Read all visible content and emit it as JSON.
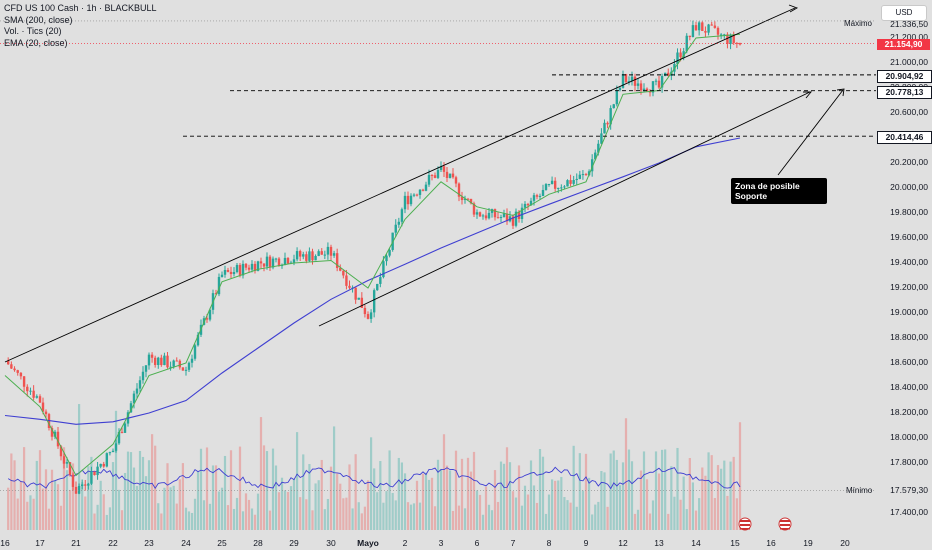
{
  "legend": {
    "symbol": "CFD US 100 Cash · 1h · BLACKBULL",
    "sma": "SMA (200, close)",
    "vol": "Vol. · Tics (20)",
    "ema": "EMA (20, close)"
  },
  "currency": "USD",
  "price_axis": {
    "ticks": [
      "21.200,00",
      "21.000,00",
      "20.800,00",
      "20.600,00",
      "20.400,00",
      "20.200,00",
      "20.000,00",
      "19.800,00",
      "19.600,00",
      "19.400,00",
      "19.200,00",
      "19.000,00",
      "18.800,00",
      "18.600,00",
      "18.400,00",
      "18.200,00",
      "18.000,00",
      "17.800,00",
      "17.400,00"
    ],
    "max_label": "Máximo",
    "max_value": "21.336,50",
    "min_label": "Mínimo",
    "min_value": "17.579,30",
    "current": "21.154,90",
    "levels": [
      "20.904,92",
      "20.778,13",
      "20.414,46"
    ]
  },
  "time_axis": [
    "16",
    "17",
    "21",
    "22",
    "23",
    "24",
    "25",
    "28",
    "29",
    "30",
    "Mayo",
    "2",
    "3",
    "6",
    "7",
    "8",
    "9",
    "12",
    "13",
    "14",
    "15",
    "16",
    "19",
    "20"
  ],
  "annotation": {
    "line1": "Zona de posible",
    "line2": "Soporte"
  },
  "chart_data": {
    "type": "candlestick",
    "title": "CFD US 100 Cash · 1h · BLACKBULL",
    "indicators": [
      "SMA (200, close)",
      "Vol. · Tics (20)",
      "EMA (20, close)"
    ],
    "x": [
      "16",
      "17",
      "21",
      "22",
      "23",
      "24",
      "25",
      "28",
      "29",
      "30",
      "Mayo",
      "2",
      "3",
      "6",
      "7",
      "8",
      "9",
      "12",
      "13",
      "14",
      "15"
    ],
    "series": [
      {
        "name": "price",
        "values": [
          18620,
          18300,
          17580,
          17900,
          18650,
          18550,
          19300,
          19400,
          19450,
          19480,
          18980,
          19900,
          20150,
          19800,
          19750,
          20000,
          20100,
          20870,
          20800,
          21300,
          21150
        ]
      },
      {
        "name": "SMA (200, close)",
        "values": [
          18180,
          18150,
          18110,
          18130,
          18200,
          18300,
          18520,
          18720,
          18920,
          19110,
          19260,
          19390,
          19520,
          19640,
          19760,
          19870,
          19980,
          20090,
          20200,
          20330,
          20400
        ]
      },
      {
        "name": "EMA (20, close)",
        "values": [
          18500,
          18250,
          17700,
          17950,
          18500,
          18600,
          19250,
          19350,
          19400,
          19420,
          19200,
          19750,
          20050,
          19850,
          19780,
          19950,
          20050,
          20750,
          20780,
          21200,
          21230
        ]
      }
    ],
    "horizontal_levels": [
      20904.92,
      20778.13,
      20414.46
    ],
    "current_price": 21154.9,
    "high": 21336.5,
    "low": 17579.3,
    "ylim": [
      17300,
      21500
    ],
    "colors": {
      "up": "#26a69a",
      "down": "#ef5350",
      "sma": "#3f3fd1",
      "ema": "#4caf50",
      "current": "#f23645"
    }
  }
}
